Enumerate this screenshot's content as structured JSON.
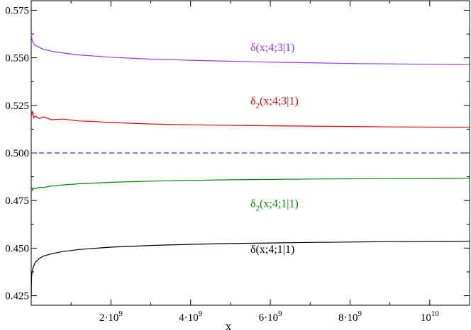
{
  "chart_data": {
    "type": "line",
    "xlabel": "x",
    "ylabel": "",
    "xlim": [
      0,
      11000000000
    ],
    "ylim": [
      0.42,
      0.58
    ],
    "grid": false,
    "x_ticks": [
      {
        "value": 2000000000,
        "label_base": "2·10",
        "label_exp": "9"
      },
      {
        "value": 4000000000,
        "label_base": "4·10",
        "label_exp": "9"
      },
      {
        "value": 6000000000,
        "label_base": "6·10",
        "label_exp": "9"
      },
      {
        "value": 8000000000,
        "label_base": "8·10",
        "label_exp": "9"
      },
      {
        "value": 10000000000,
        "label_base": "10",
        "label_exp": "10"
      }
    ],
    "y_ticks": [
      {
        "value": 0.425,
        "label": "0.425"
      },
      {
        "value": 0.45,
        "label": "0.450"
      },
      {
        "value": 0.475,
        "label": "0.475"
      },
      {
        "value": 0.5,
        "label": "0.500"
      },
      {
        "value": 0.525,
        "label": "0.525"
      },
      {
        "value": 0.55,
        "label": "0.550"
      },
      {
        "value": 0.575,
        "label": "0.575"
      }
    ],
    "reference_line": {
      "y": 0.5,
      "color": "#3333cc",
      "style": "dashed"
    },
    "series": [
      {
        "name": "δ(x;4;3|1)",
        "label_parts": {
          "base": "δ(x;4;3|1)",
          "sub": ""
        },
        "color": "#9933ff",
        "label_at": [
          5500000000,
          0.5535
        ],
        "x": [
          1000000,
          10000000,
          30000000,
          60000000,
          100000000,
          200000000,
          300000000,
          500000000,
          800000000,
          1200000000,
          2000000000,
          3000000000,
          4000000000,
          5000000000,
          6000000000,
          7000000000,
          8000000000,
          9000000000,
          10000000000,
          11000000000
        ],
        "values": [
          0.5625,
          0.5605,
          0.559,
          0.5575,
          0.5565,
          0.5555,
          0.5545,
          0.5535,
          0.5525,
          0.5515,
          0.5503,
          0.5493,
          0.5487,
          0.5482,
          0.5477,
          0.5474,
          0.547,
          0.5468,
          0.5466,
          0.5464
        ]
      },
      {
        "name": "δ2(x;4;3|1)",
        "label_parts": {
          "base": "δ",
          "sub": "2",
          "rest": "(x;4;3|1)"
        },
        "color": "#ee0000",
        "label_at": [
          5500000000,
          0.5255
        ],
        "x": [
          1000000,
          10000000,
          30000000,
          60000000,
          100000000,
          200000000,
          300000000,
          500000000,
          800000000,
          1200000000,
          1600000000,
          2000000000,
          3000000000,
          4000000000,
          5000000000,
          6000000000,
          7000000000,
          8000000000,
          9000000000,
          10000000000,
          11000000000
        ],
        "values": [
          0.5215,
          0.52,
          0.522,
          0.5185,
          0.5195,
          0.518,
          0.519,
          0.5175,
          0.5178,
          0.5168,
          0.5165,
          0.516,
          0.5152,
          0.5148,
          0.5145,
          0.5143,
          0.5141,
          0.5139,
          0.5137,
          0.5136,
          0.5135
        ]
      },
      {
        "name": "δ2(x;4;1|1)",
        "label_parts": {
          "base": "δ",
          "sub": "2",
          "rest": "(x;4;1|1)"
        },
        "color": "#008800",
        "label_at": [
          5500000000,
          0.4715
        ],
        "x": [
          1000000,
          10000000,
          30000000,
          60000000,
          100000000,
          200000000,
          300000000,
          500000000,
          800000000,
          1200000000,
          1600000000,
          2000000000,
          3000000000,
          4000000000,
          5000000000,
          6000000000,
          7000000000,
          8000000000,
          9000000000,
          10000000000,
          11000000000
        ],
        "values": [
          0.4805,
          0.482,
          0.4805,
          0.4815,
          0.4812,
          0.482,
          0.4818,
          0.4826,
          0.4832,
          0.4838,
          0.4842,
          0.4846,
          0.4852,
          0.4856,
          0.4859,
          0.4861,
          0.4863,
          0.4864,
          0.4865,
          0.4866,
          0.4867
        ]
      },
      {
        "name": "δ(x;4;1|1)",
        "label_parts": {
          "base": "δ(x;4;1|1)",
          "sub": ""
        },
        "color": "#000000",
        "label_at": [
          5500000000,
          0.4475
        ],
        "x": [
          1000000,
          3000000,
          10000000,
          30000000,
          60000000,
          100000000,
          200000000,
          300000000,
          500000000,
          800000000,
          1200000000,
          2000000000,
          3000000000,
          4000000000,
          5000000000,
          6000000000,
          7000000000,
          8000000000,
          9000000000,
          10000000000,
          11000000000
        ],
        "values": [
          0.424,
          0.43,
          0.4355,
          0.4385,
          0.4405,
          0.4425,
          0.4445,
          0.4458,
          0.447,
          0.4482,
          0.4493,
          0.4505,
          0.4514,
          0.452,
          0.4524,
          0.4527,
          0.453,
          0.4532,
          0.4534,
          0.4535,
          0.4536
        ]
      }
    ]
  }
}
